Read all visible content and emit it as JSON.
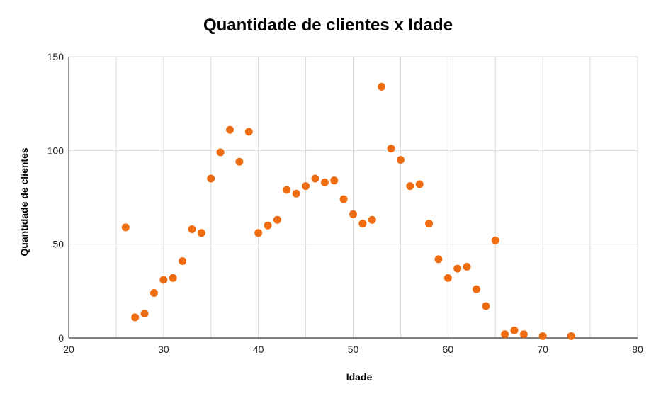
{
  "chart_data": {
    "type": "scatter",
    "title": "Quantidade de clientes x Idade",
    "xlabel": "Idade",
    "ylabel": "Quantidade de clientes",
    "xlim": [
      20,
      80
    ],
    "ylim": [
      0,
      150
    ],
    "x_ticks": [
      20,
      30,
      40,
      50,
      60,
      70,
      80
    ],
    "y_ticks": [
      0,
      50,
      100,
      150
    ],
    "x_minor_grid": [
      25,
      35,
      45,
      55,
      65,
      75
    ],
    "grid": true,
    "legend": "none",
    "colors": {
      "point": "#ee6c12",
      "grid": "#d9d9d9",
      "axis": "#333333"
    },
    "series": [
      {
        "x": [
          26,
          27,
          28,
          29,
          30,
          31,
          32,
          33,
          34,
          35,
          36,
          37,
          38,
          39,
          40,
          41,
          42,
          43,
          44,
          45,
          46,
          47,
          48,
          49,
          50,
          51,
          52,
          53,
          54,
          55,
          56,
          57,
          58,
          59,
          60,
          61,
          62,
          63,
          64,
          65,
          66,
          67,
          68,
          70,
          73
        ],
        "y": [
          59,
          11,
          13,
          24,
          31,
          32,
          41,
          58,
          56,
          85,
          99,
          111,
          94,
          110,
          56,
          60,
          63,
          79,
          77,
          81,
          85,
          83,
          84,
          74,
          66,
          61,
          63,
          134,
          101,
          95,
          81,
          82,
          61,
          42,
          32,
          37,
          38,
          26,
          17,
          52,
          2,
          4,
          2,
          1,
          1
        ]
      }
    ]
  }
}
